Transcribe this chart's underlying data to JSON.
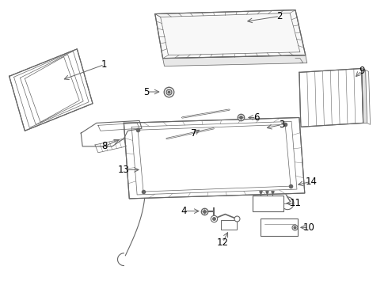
{
  "background_color": "#ffffff",
  "line_color": "#666666",
  "label_color": "#000000",
  "figsize": [
    4.9,
    3.6
  ],
  "dpi": 100
}
